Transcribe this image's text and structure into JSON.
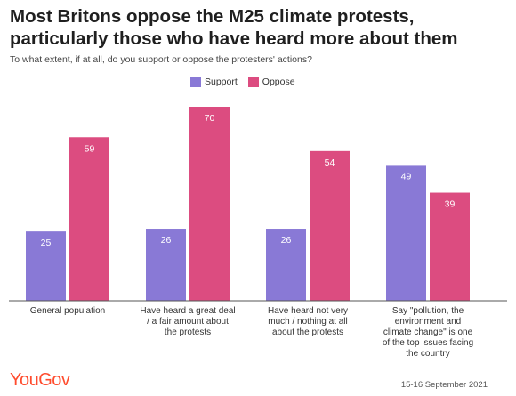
{
  "title_line1": "Most Britons oppose the M25 climate protests,",
  "title_line2": "particularly those who have heard more about them",
  "subtitle": "To what extent, if at all, do you support or oppose the protesters' actions?",
  "brand": "YouGov",
  "date": "15-16 September 2021",
  "colors": {
    "support": "#8979d6",
    "oppose": "#dc4c80",
    "axis": "#555555"
  },
  "chart_data": {
    "type": "bar",
    "categories": [
      [
        "General population"
      ],
      [
        "Have heard a great deal",
        "/ a fair amount about",
        "the protests"
      ],
      [
        "Have heard not very",
        "much / nothing at all",
        "about the protests"
      ],
      [
        "Say \"pollution, the",
        "environment and",
        "climate change\" is one",
        "of the top issues facing",
        "the country"
      ]
    ],
    "series": [
      {
        "name": "Support",
        "values": [
          25,
          26,
          26,
          49
        ]
      },
      {
        "name": "Oppose",
        "values": [
          59,
          70,
          54,
          39
        ]
      }
    ],
    "ylim": [
      0,
      70
    ],
    "legend": "top-center",
    "grid": false
  }
}
